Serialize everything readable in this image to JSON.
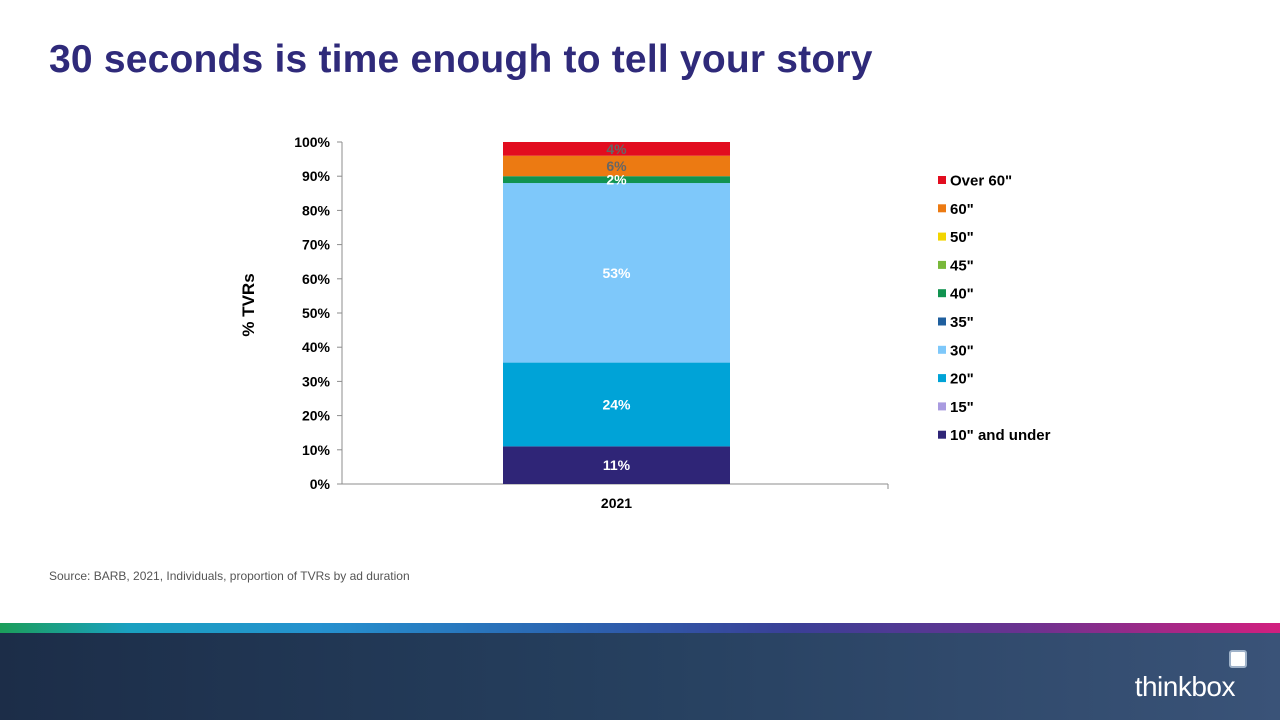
{
  "title": "30 seconds is time enough to tell your story",
  "source_text": "Source: BARB, 2021, Individuals,  proportion  of TVRs by ad duration",
  "brand": {
    "name": "thinkbox"
  },
  "chart_data": {
    "type": "bar",
    "stacked": true,
    "categories": [
      "2021"
    ],
    "ylabel": "% TVRs",
    "ylim": [
      0,
      100
    ],
    "yticks": [
      0,
      10,
      20,
      30,
      40,
      50,
      60,
      70,
      80,
      90,
      100
    ],
    "ytick_format": "percent",
    "legend_position": "right",
    "grid": false,
    "series": [
      {
        "name": "10\" and under",
        "values": [
          11
        ],
        "color": "#2f2577",
        "label": "11%",
        "label_color": "#ffffff"
      },
      {
        "name": "15\"",
        "values": [
          0
        ],
        "color": "#a99be0",
        "label": "",
        "label_color": "#ffffff"
      },
      {
        "name": "20\"",
        "values": [
          24.5
        ],
        "color": "#00a3d7",
        "label": "24%",
        "label_color": "#ffffff"
      },
      {
        "name": "30\"",
        "values": [
          52.5
        ],
        "color": "#7ec8fa",
        "label": "53%",
        "label_color": "#ffffff"
      },
      {
        "name": "35\"",
        "values": [
          0
        ],
        "color": "#1f5f9e",
        "label": "",
        "label_color": "#ffffff"
      },
      {
        "name": "40\"",
        "values": [
          2
        ],
        "color": "#119350",
        "label": "2%",
        "label_color": "#ffffff"
      },
      {
        "name": "45\"",
        "values": [
          0
        ],
        "color": "#79b83a",
        "label": "",
        "label_color": "#ffffff"
      },
      {
        "name": "50\"",
        "values": [
          0
        ],
        "color": "#f2d500",
        "label": "",
        "label_color": "#ffffff"
      },
      {
        "name": "60\"",
        "values": [
          6
        ],
        "color": "#ec7a12",
        "label": "6%",
        "label_color": "#666666"
      },
      {
        "name": "Over 60\"",
        "values": [
          4
        ],
        "color": "#e20d1f",
        "label": "4%",
        "label_color": "#666666"
      }
    ]
  }
}
